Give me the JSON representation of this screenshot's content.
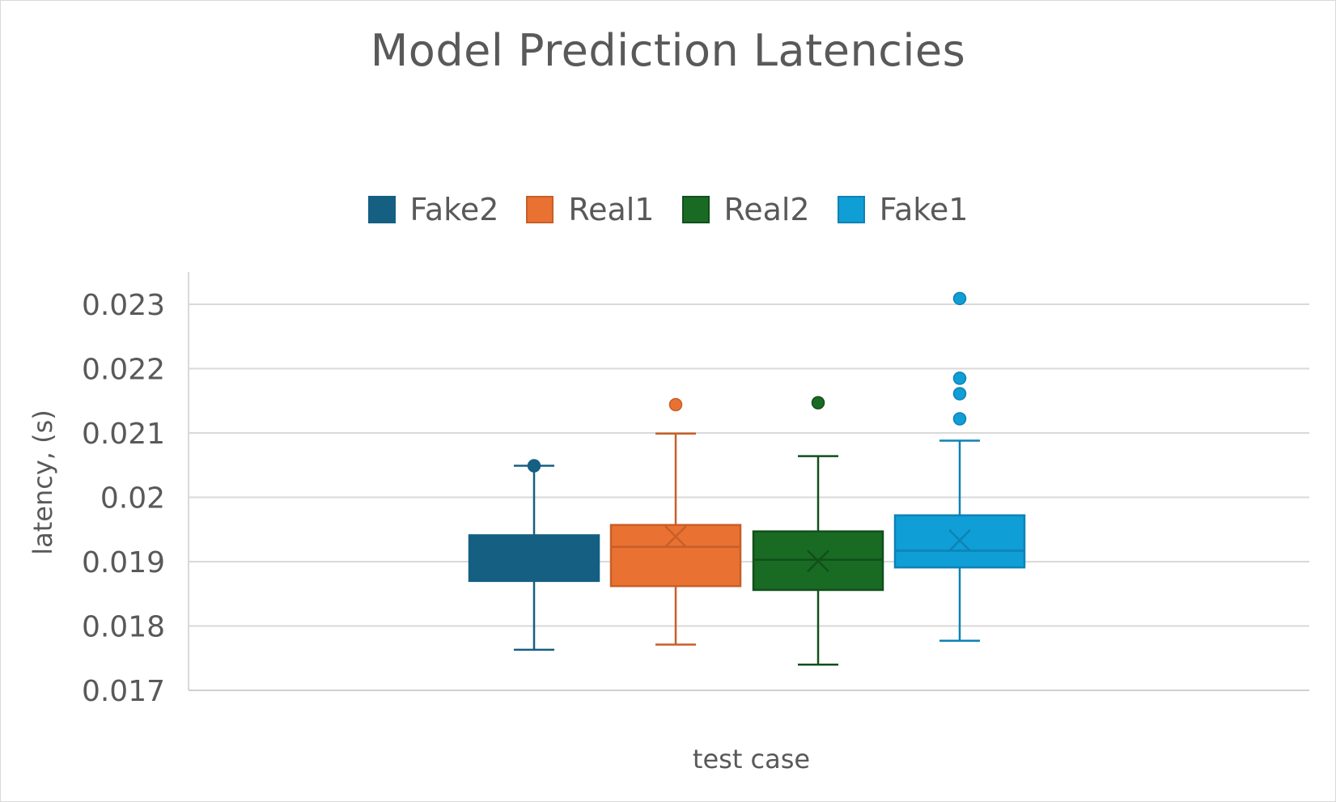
{
  "chart_data": {
    "type": "box",
    "title": "Model Prediction Latencies",
    "xlabel": "test case",
    "ylabel": "latency, (s)",
    "ylim": [
      0.017,
      0.023
    ],
    "yticks": [
      "0.017",
      "0.018",
      "0.019",
      "0.02",
      "0.021",
      "0.022",
      "0.023"
    ],
    "grid": true,
    "legend_position": "top-center",
    "series": [
      {
        "name": "Fake2",
        "color": "#155F82",
        "fill": "#155F82",
        "whisker_low": 0.01763,
        "q1": 0.0187,
        "median": 0.01907,
        "q3": 0.01941,
        "whisker_high": 0.02049,
        "mean": 0.0191,
        "outliers": [
          0.02049
        ]
      },
      {
        "name": "Real1",
        "color": "#C75F28",
        "fill": "#E97132",
        "whisker_low": 0.01771,
        "q1": 0.01862,
        "median": 0.01923,
        "q3": 0.01957,
        "whisker_high": 0.02099,
        "mean": 0.01939,
        "outliers": [
          0.02144
        ]
      },
      {
        "name": "Real2",
        "color": "#124F1B",
        "fill": "#196B24",
        "whisker_low": 0.0174,
        "q1": 0.01856,
        "median": 0.01903,
        "q3": 0.01947,
        "whisker_high": 0.02064,
        "mean": 0.01901,
        "outliers": [
          0.02147
        ]
      },
      {
        "name": "Fake1",
        "color": "#0E82B5",
        "fill": "#0F9ED5",
        "whisker_low": 0.01777,
        "q1": 0.01891,
        "median": 0.01917,
        "q3": 0.01972,
        "whisker_high": 0.02088,
        "mean": 0.01933,
        "outliers": [
          0.02309,
          0.02185,
          0.02161,
          0.02122
        ]
      }
    ]
  }
}
